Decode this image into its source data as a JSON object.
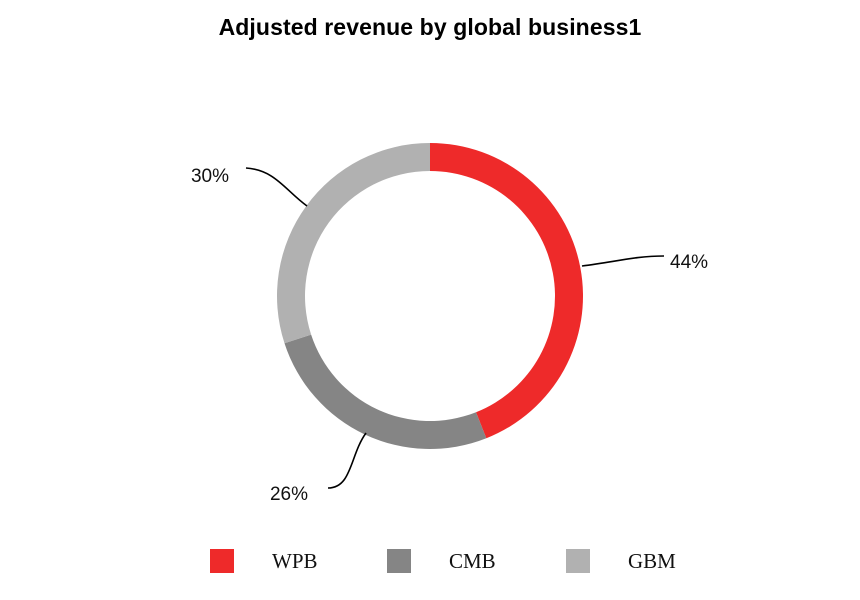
{
  "chart_data": {
    "type": "pie",
    "title": "Adjusted revenue by global business1",
    "categories": [
      "WPB",
      "CMB",
      "GBM"
    ],
    "values": [
      44,
      26,
      30
    ],
    "value_labels": [
      "44%",
      "26%",
      "30%"
    ],
    "colors": {
      "WPB": "#ee2a2a",
      "CMB": "#858585",
      "GBM": "#b1b1b1"
    },
    "legend": {
      "position": "bottom",
      "items": [
        {
          "label": "WPB",
          "color": "#ee2a2a"
        },
        {
          "label": "CMB",
          "color": "#858585"
        },
        {
          "label": "GBM",
          "color": "#b1b1b1"
        }
      ]
    }
  }
}
